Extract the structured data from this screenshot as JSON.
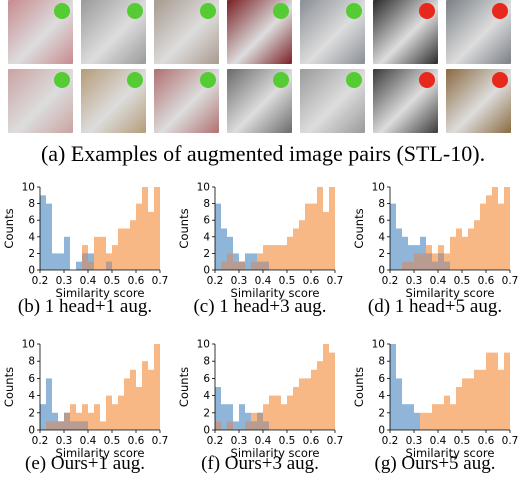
{
  "figure": {
    "caption_a": "(a) Examples of augmented image pairs (STL-10).",
    "pair_status_colors": {
      "match": "#55cc33",
      "mismatch": "#e8281c"
    },
    "series_colors": {
      "same": "#f7b886",
      "different": "#8fb6d9",
      "overlap": "#b89c92"
    },
    "thumbnails": {
      "top": [
        {
          "name": "deer-top",
          "bg": "#c88a8f",
          "status": "match"
        },
        {
          "name": "ship-top",
          "bg": "#9a9a9a",
          "status": "match"
        },
        {
          "name": "texture-top",
          "bg": "#a89a8e",
          "status": "match"
        },
        {
          "name": "car-top",
          "bg": "#7a1f24",
          "status": "match"
        },
        {
          "name": "bird-top",
          "bg": "#8a8f96",
          "status": "match"
        },
        {
          "name": "dark-top",
          "bg": "#2a2a2a",
          "status": "mismatch"
        },
        {
          "name": "animal-top",
          "bg": "#7a8088",
          "status": "mismatch"
        }
      ],
      "bottom": [
        {
          "name": "deer-bottom",
          "bg": "#c9a3a2",
          "status": "match"
        },
        {
          "name": "ship-bottom",
          "bg": "#b59b78",
          "status": "match"
        },
        {
          "name": "bird-bottom",
          "bg": "#b07070",
          "status": "match"
        },
        {
          "name": "car-bottom",
          "bg": "#6a6a6a",
          "status": "match"
        },
        {
          "name": "texture-bottom",
          "bg": "#9a9a9a",
          "status": "match"
        },
        {
          "name": "dark-bottom",
          "bg": "#3a3a3a",
          "status": "mismatch"
        },
        {
          "name": "animal-bottom",
          "bg": "#8a6a40",
          "status": "mismatch"
        }
      ]
    }
  },
  "chart_data": [
    {
      "type": "bar",
      "caption": "(b) 1 head+1 aug.",
      "xlabel": "Similarity score",
      "ylabel": "Counts",
      "xlim": [
        0.2,
        0.7
      ],
      "ylim": [
        0,
        10
      ],
      "xticks": [
        "0.2",
        "0.3",
        "0.4",
        "0.5",
        "0.6",
        "0.7"
      ],
      "yticks": [
        "0",
        "2",
        "4",
        "6",
        "8",
        "10"
      ],
      "bins": [
        0.2,
        0.225,
        0.25,
        0.275,
        0.3,
        0.325,
        0.35,
        0.375,
        0.4,
        0.425,
        0.45,
        0.475,
        0.5,
        0.525,
        0.55,
        0.575,
        0.6,
        0.625,
        0.65,
        0.675
      ],
      "series": [
        {
          "name": "",
          "color": "#8fb6d9",
          "values": [
            9,
            8,
            2,
            2,
            4,
            0,
            1,
            2,
            2,
            0,
            0,
            1,
            0,
            0,
            0,
            0,
            0,
            0,
            0,
            0
          ]
        },
        {
          "name": "",
          "color": "#f7b886",
          "values": [
            0,
            0,
            0,
            0,
            0,
            0,
            0,
            3,
            1,
            4,
            4,
            2,
            3,
            5,
            5,
            6,
            8,
            10,
            7,
            10
          ]
        }
      ]
    },
    {
      "type": "bar",
      "caption": "(c) 1 head+3 aug.",
      "xlabel": "Similarity score",
      "ylabel": "Counts",
      "xlim": [
        0.2,
        0.7
      ],
      "ylim": [
        0,
        10
      ],
      "xticks": [
        "0.2",
        "0.3",
        "0.4",
        "0.5",
        "0.6",
        "0.7"
      ],
      "yticks": [
        "0",
        "2",
        "4",
        "6",
        "8",
        "10"
      ],
      "bins": [
        0.2,
        0.225,
        0.25,
        0.275,
        0.3,
        0.325,
        0.35,
        0.375,
        0.4,
        0.425,
        0.45,
        0.475,
        0.5,
        0.525,
        0.55,
        0.575,
        0.6,
        0.625,
        0.65,
        0.675
      ],
      "series": [
        {
          "name": "",
          "color": "#8fb6d9",
          "values": [
            8,
            5,
            4,
            2,
            1,
            2,
            2,
            1,
            1,
            0,
            0,
            0,
            0,
            0,
            0,
            0,
            0,
            0,
            0,
            0
          ]
        },
        {
          "name": "",
          "color": "#f7b886",
          "values": [
            0,
            1,
            2,
            1,
            1,
            0,
            1,
            2,
            3,
            3,
            3,
            3,
            4,
            5,
            6,
            8,
            8,
            10,
            7,
            10
          ]
        }
      ]
    },
    {
      "type": "bar",
      "caption": "(d) 1 head+5 aug.",
      "xlabel": "Similarity score",
      "ylabel": "Counts",
      "xlim": [
        0.2,
        0.7
      ],
      "ylim": [
        0,
        10
      ],
      "xticks": [
        "0.2",
        "0.3",
        "0.4",
        "0.5",
        "0.6",
        "0.7"
      ],
      "yticks": [
        "0",
        "2",
        "4",
        "6",
        "8",
        "10"
      ],
      "bins": [
        0.2,
        0.225,
        0.25,
        0.275,
        0.3,
        0.325,
        0.35,
        0.375,
        0.4,
        0.425,
        0.45,
        0.475,
        0.5,
        0.525,
        0.55,
        0.575,
        0.6,
        0.625,
        0.65,
        0.675
      ],
      "series": [
        {
          "name": "",
          "color": "#8fb6d9",
          "values": [
            8,
            5,
            4,
            3,
            3,
            4,
            2,
            1,
            2,
            1,
            0,
            0,
            0,
            0,
            0,
            0,
            0,
            0,
            0,
            0
          ]
        },
        {
          "name": "",
          "color": "#f7b886",
          "values": [
            0,
            0,
            1,
            1,
            2,
            2,
            3,
            2,
            3,
            2,
            4,
            5,
            4,
            5,
            6,
            8,
            9,
            10,
            8,
            10
          ]
        }
      ]
    },
    {
      "type": "bar",
      "caption": "(e) Ours+1 aug.",
      "xlabel": "Similarity score",
      "ylabel": "Counts",
      "xlim": [
        0.2,
        0.7
      ],
      "ylim": [
        0,
        10
      ],
      "xticks": [
        "0.2",
        "0.3",
        "0.4",
        "0.5",
        "0.6",
        "0.7"
      ],
      "yticks": [
        "0",
        "2",
        "4",
        "6",
        "8",
        "10"
      ],
      "bins": [
        0.2,
        0.225,
        0.25,
        0.275,
        0.3,
        0.325,
        0.35,
        0.375,
        0.4,
        0.425,
        0.45,
        0.475,
        0.5,
        0.525,
        0.55,
        0.575,
        0.6,
        0.625,
        0.65,
        0.675
      ],
      "series": [
        {
          "name": "",
          "color": "#8fb6d9",
          "values": [
            3,
            6,
            2,
            1,
            2,
            1,
            1,
            1,
            0,
            0,
            0,
            0,
            0,
            0,
            0,
            0,
            0,
            0,
            0,
            0
          ]
        },
        {
          "name": "",
          "color": "#f7b886",
          "values": [
            0,
            1,
            1,
            1,
            2,
            3,
            2,
            3,
            2,
            3,
            1,
            4,
            3,
            4,
            6,
            7,
            5,
            8,
            7,
            10
          ]
        }
      ]
    },
    {
      "type": "bar",
      "caption": "(f) Ours+3 aug.",
      "xlabel": "Similarity score",
      "ylabel": "Counts",
      "xlim": [
        0.2,
        0.7
      ],
      "ylim": [
        0,
        10
      ],
      "xticks": [
        "0.2",
        "0.3",
        "0.4",
        "0.5",
        "0.6",
        "0.7"
      ],
      "yticks": [
        "0",
        "2",
        "4",
        "6",
        "8",
        "10"
      ],
      "bins": [
        0.2,
        0.225,
        0.25,
        0.275,
        0.3,
        0.325,
        0.35,
        0.375,
        0.4,
        0.425,
        0.45,
        0.475,
        0.5,
        0.525,
        0.55,
        0.575,
        0.6,
        0.625,
        0.65,
        0.675
      ],
      "series": [
        {
          "name": "",
          "color": "#8fb6d9",
          "values": [
            5,
            3,
            3,
            1,
            3,
            2,
            1,
            2,
            1,
            0,
            0,
            0,
            0,
            0,
            0,
            0,
            0,
            0,
            0,
            0
          ]
        },
        {
          "name": "",
          "color": "#f7b886",
          "values": [
            1,
            0,
            1,
            0,
            0,
            1,
            2,
            2,
            3,
            4,
            4,
            3,
            4,
            5,
            6,
            6,
            7,
            8,
            10,
            9
          ]
        }
      ]
    },
    {
      "type": "bar",
      "caption": "(g) Ours+5 aug.",
      "xlabel": "Similarity score",
      "ylabel": "Counts",
      "xlim": [
        0.2,
        0.7
      ],
      "ylim": [
        0,
        10
      ],
      "xticks": [
        "0.2",
        "0.3",
        "0.4",
        "0.5",
        "0.6",
        "0.7"
      ],
      "yticks": [
        "0",
        "2",
        "4",
        "6",
        "8",
        "10"
      ],
      "bins": [
        0.2,
        0.225,
        0.25,
        0.275,
        0.3,
        0.325,
        0.35,
        0.375,
        0.4,
        0.425,
        0.45,
        0.475,
        0.5,
        0.525,
        0.55,
        0.575,
        0.6,
        0.625,
        0.65,
        0.675
      ],
      "series": [
        {
          "name": "",
          "color": "#8fb6d9",
          "values": [
            10,
            6,
            3,
            3,
            2,
            0,
            0,
            0,
            0,
            0,
            0,
            0,
            0,
            0,
            0,
            0,
            0,
            0,
            0,
            0
          ]
        },
        {
          "name": "",
          "color": "#f7b886",
          "values": [
            0,
            0,
            0,
            0,
            0,
            2,
            2,
            3,
            3,
            4,
            3,
            5,
            6,
            6,
            7,
            7,
            9,
            9,
            7,
            9
          ]
        }
      ]
    }
  ]
}
